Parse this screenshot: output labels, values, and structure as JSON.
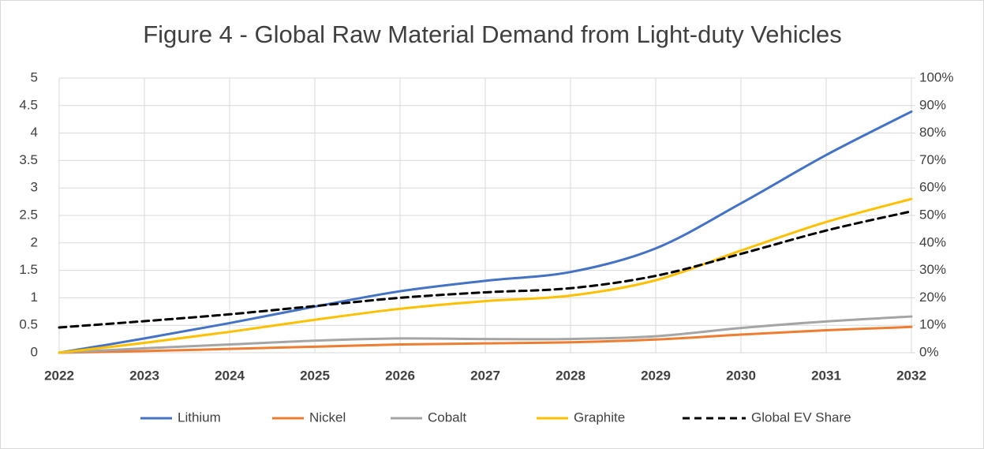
{
  "chart_data": {
    "type": "line",
    "title": "Figure 4 - Global Raw Material Demand from Light-duty Vehicles",
    "categories": [
      "2022",
      "2023",
      "2024",
      "2025",
      "2026",
      "2027",
      "2028",
      "2029",
      "2030",
      "2031",
      "2032"
    ],
    "series": [
      {
        "name": "Lithium",
        "color": "#4472c4",
        "values": [
          0,
          0.26,
          0.54,
          0.84,
          1.12,
          1.31,
          1.47,
          1.9,
          2.72,
          3.6,
          4.39
        ]
      },
      {
        "name": "Nickel",
        "color": "#ed7d31",
        "values": [
          0,
          0.03,
          0.07,
          0.11,
          0.15,
          0.17,
          0.19,
          0.24,
          0.33,
          0.41,
          0.47
        ]
      },
      {
        "name": "Cobalt",
        "color": "#a5a5a5",
        "values": [
          0,
          0.08,
          0.15,
          0.22,
          0.26,
          0.25,
          0.25,
          0.3,
          0.45,
          0.57,
          0.66
        ]
      },
      {
        "name": "Graphite",
        "color": "#ffc000",
        "values": [
          0,
          0.18,
          0.38,
          0.6,
          0.8,
          0.94,
          1.04,
          1.32,
          1.86,
          2.38,
          2.8
        ]
      },
      {
        "name": "Global EV Share",
        "color": "#000000",
        "dashed": true,
        "axis": "y2",
        "values": [
          9.2,
          11.5,
          14,
          17,
          20,
          22,
          23.5,
          28,
          36,
          44.5,
          51.5
        ]
      }
    ],
    "ylim": [
      0,
      5
    ],
    "yticks": [
      0,
      0.5,
      1,
      1.5,
      2,
      2.5,
      3,
      3.5,
      4,
      4.5,
      5
    ],
    "y2lim": [
      0,
      100
    ],
    "y2ticks": [
      {
        "value": 0,
        "label": "0%"
      },
      {
        "value": 10,
        "label": "10%"
      },
      {
        "value": 20,
        "label": "20%"
      },
      {
        "value": 30,
        "label": "30%"
      },
      {
        "value": 40,
        "label": "40%"
      },
      {
        "value": 50,
        "label": "50%"
      },
      {
        "value": 60,
        "label": "60%"
      },
      {
        "value": 70,
        "label": "70%"
      },
      {
        "value": 80,
        "label": "80%"
      },
      {
        "value": 90,
        "label": "90%"
      },
      {
        "value": 100,
        "label": "100%"
      }
    ],
    "grid": true,
    "legend": "bottom"
  }
}
